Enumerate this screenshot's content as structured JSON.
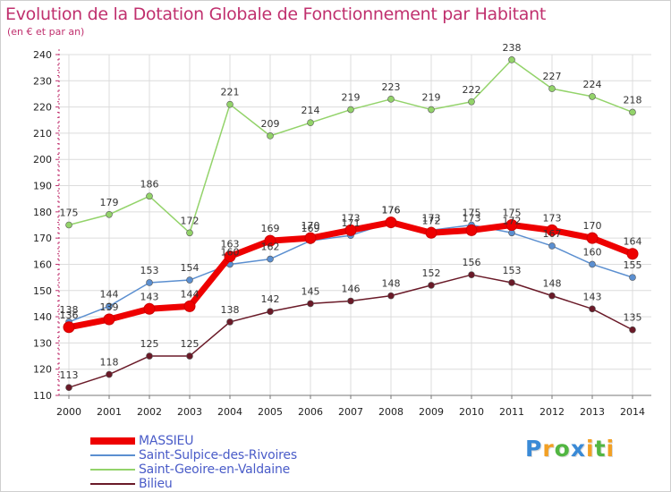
{
  "title": "Evolution de la Dotation Globale de Fonctionnement par Habitant",
  "subtitle": "(en € et par an)",
  "colors": {
    "title": "#c0306e",
    "axis": "#c0306e",
    "grid": "#dcdcdc",
    "legend_text": "#4a5cc8"
  },
  "chart_data": {
    "type": "line",
    "x": [
      2000,
      2001,
      2002,
      2003,
      2004,
      2005,
      2006,
      2007,
      2008,
      2009,
      2010,
      2011,
      2012,
      2013,
      2014
    ],
    "ylim": [
      110,
      240
    ],
    "yticks": [
      110,
      120,
      130,
      140,
      150,
      160,
      170,
      180,
      190,
      200,
      210,
      220,
      230,
      240
    ],
    "grid": true,
    "legend_position": "bottom-left",
    "series": [
      {
        "name": "MASSIEU",
        "color": "#ee0000",
        "values": [
          136,
          139,
          143,
          144,
          163,
          169,
          170,
          173,
          176,
          172,
          173,
          175,
          173,
          170,
          164
        ]
      },
      {
        "name": "Saint-Sulpice-des-Rivoires",
        "color": "#5b8fd0",
        "values": [
          138,
          144,
          153,
          154,
          160,
          162,
          169,
          171,
          176,
          173,
          175,
          172,
          167,
          160,
          155
        ]
      },
      {
        "name": "Saint-Geoire-en-Valdaine",
        "color": "#93d36a",
        "values": [
          175,
          179,
          186,
          172,
          221,
          209,
          214,
          219,
          223,
          219,
          222,
          238,
          227,
          224,
          218
        ]
      },
      {
        "name": "Bilieu",
        "color": "#6a1a28",
        "values": [
          113,
          118,
          125,
          125,
          138,
          142,
          145,
          146,
          148,
          152,
          156,
          153,
          148,
          143,
          135
        ]
      }
    ]
  },
  "logo": {
    "letters": [
      {
        "ch": "P",
        "color": "#3a8ad6"
      },
      {
        "ch": "r",
        "color": "#f2a024"
      },
      {
        "ch": "o",
        "color": "#52b642"
      },
      {
        "ch": "x",
        "color": "#3a8ad6"
      },
      {
        "ch": "i",
        "color": "#f2a024"
      },
      {
        "ch": "t",
        "color": "#52b642"
      },
      {
        "ch": "i",
        "color": "#f2a024"
      }
    ]
  }
}
